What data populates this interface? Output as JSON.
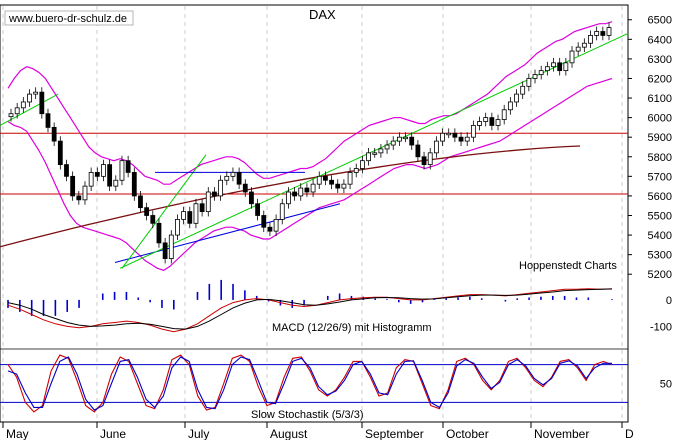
{
  "watermark": "www.buero-dr-schulz.de",
  "chart_data": [
    {
      "type": "candlestick",
      "title": "DAX",
      "source_label": "Hoppenstedt Charts",
      "y_ticks": [
        5200,
        5300,
        5400,
        5500,
        5600,
        5700,
        5800,
        5900,
        6000,
        6100,
        6200,
        6300,
        6400,
        6500
      ],
      "ylim": [
        5150,
        6560
      ],
      "x_labels": [
        "May",
        "June",
        "July",
        "August",
        "September",
        "October",
        "November",
        "D"
      ],
      "horizontal_lines": [
        5920,
        5610
      ],
      "close_series": [
        6020,
        6050,
        6080,
        6120,
        6130,
        6020,
        5950,
        5880,
        5760,
        5700,
        5600,
        5580,
        5650,
        5720,
        5700,
        5760,
        5650,
        5680,
        5780,
        5720,
        5600,
        5540,
        5500,
        5460,
        5360,
        5280,
        5400,
        5480,
        5520,
        5460,
        5560,
        5520,
        5620,
        5600,
        5680,
        5700,
        5720,
        5660,
        5620,
        5560,
        5500,
        5440,
        5420,
        5480,
        5560,
        5620,
        5600,
        5640,
        5620,
        5660,
        5700,
        5680,
        5660,
        5640,
        5660,
        5720,
        5740,
        5780,
        5820,
        5820,
        5840,
        5860,
        5880,
        5900,
        5900,
        5860,
        5800,
        5760,
        5820,
        5880,
        5920,
        5920,
        5900,
        5880,
        5900,
        5960,
        5980,
        6000,
        5960,
        5990,
        6040,
        6080,
        6120,
        6160,
        6200,
        6220,
        6240,
        6260,
        6280,
        6240,
        6280,
        6340,
        6360,
        6380,
        6420,
        6440,
        6420,
        6460
      ],
      "bollinger_upper": [
        6150,
        6200,
        6240,
        6260,
        6250,
        6230,
        6200,
        6150,
        6100,
        6050,
        6000,
        5950,
        5900,
        5850,
        5820,
        5800,
        5790,
        5780,
        5790,
        5780,
        5760,
        5730,
        5700,
        5690,
        5680,
        5660,
        5660,
        5680,
        5700,
        5720,
        5740,
        5760,
        5770,
        5780,
        5790,
        5800,
        5800,
        5790,
        5770,
        5740,
        5710,
        5690,
        5690,
        5700,
        5710,
        5720,
        5730,
        5740,
        5740,
        5750,
        5770,
        5790,
        5820,
        5850,
        5880,
        5900,
        5920,
        5940,
        5960,
        5970,
        5980,
        5990,
        6000,
        6000,
        5990,
        5980,
        5970,
        5970,
        5990,
        6000,
        6010,
        6010,
        6020,
        6040,
        6060,
        6080,
        6100,
        6120,
        6150,
        6180,
        6210,
        6230,
        6250,
        6270,
        6300,
        6330,
        6350,
        6370,
        6390,
        6400,
        6420,
        6440,
        6450,
        6460,
        6470,
        6480,
        6480,
        6490
      ],
      "bollinger_lower": [
        5980,
        5960,
        5950,
        5930,
        5880,
        5830,
        5770,
        5700,
        5630,
        5560,
        5500,
        5460,
        5440,
        5430,
        5420,
        5410,
        5400,
        5390,
        5380,
        5360,
        5330,
        5300,
        5270,
        5250,
        5230,
        5220,
        5240,
        5270,
        5300,
        5330,
        5360,
        5380,
        5400,
        5420,
        5430,
        5440,
        5440,
        5430,
        5420,
        5400,
        5390,
        5380,
        5380,
        5400,
        5420,
        5440,
        5460,
        5480,
        5500,
        5520,
        5540,
        5550,
        5560,
        5570,
        5580,
        5600,
        5620,
        5640,
        5660,
        5680,
        5700,
        5720,
        5740,
        5750,
        5760,
        5760,
        5750,
        5740,
        5750,
        5760,
        5780,
        5800,
        5810,
        5820,
        5830,
        5840,
        5850,
        5860,
        5870,
        5880,
        5900,
        5920,
        5940,
        5960,
        5980,
        6000,
        6020,
        6040,
        6060,
        6080,
        6100,
        6120,
        6140,
        6160,
        6170,
        6180,
        6190,
        6200
      ],
      "ma200_start_end": [
        5340,
        5855
      ],
      "trendlines": [
        {
          "color": "#0000dd",
          "from": [
            "mid-June",
            5260
          ],
          "to": [
            "late August",
            5560
          ]
        },
        {
          "color": "#00cc00",
          "from": [
            "mid-June",
            5230
          ],
          "to": [
            "December",
            6430
          ]
        },
        {
          "color": "#00cc00",
          "from": [
            "May",
            5960
          ],
          "to": [
            "mid-May",
            6120
          ]
        },
        {
          "color": "#00cc00",
          "from": [
            "mid-June",
            5230
          ],
          "to": [
            "July",
            5810
          ]
        },
        {
          "color": "#0000dd",
          "from": [
            "late June",
            5720
          ],
          "to": [
            "late August",
            5720
          ]
        }
      ]
    },
    {
      "type": "line",
      "title": "MACD (12/26/9) mit Histogramm",
      "y_ticks": [
        0,
        -100
      ],
      "ylim": [
        -170,
        60
      ],
      "series": [
        {
          "role": "macd",
          "values": [
            -20,
            -35,
            -55,
            -75,
            -90,
            -100,
            -105,
            -100,
            -90,
            -85,
            -80,
            -85,
            -95,
            -110,
            -120,
            -110,
            -90,
            -60,
            -30,
            -10,
            0,
            5,
            0,
            -10,
            -20,
            -25,
            -20,
            -10,
            0,
            5,
            8,
            10,
            10,
            5,
            0,
            0,
            5,
            10,
            15,
            20,
            20,
            18,
            15,
            20,
            25,
            30,
            35,
            40,
            40,
            42,
            40,
            42
          ]
        },
        {
          "role": "signal",
          "values": [
            -10,
            -20,
            -35,
            -55,
            -70,
            -85,
            -95,
            -100,
            -98,
            -95,
            -90,
            -88,
            -92,
            -100,
            -108,
            -110,
            -100,
            -80,
            -55,
            -30,
            -12,
            0,
            2,
            -3,
            -10,
            -18,
            -20,
            -15,
            -8,
            0,
            4,
            8,
            9,
            8,
            5,
            3,
            4,
            8,
            12,
            16,
            18,
            18,
            17,
            18,
            22,
            26,
            30,
            35,
            37,
            39,
            40,
            41
          ]
        }
      ]
    },
    {
      "type": "line",
      "title": "Slow Stochastik (5/3/3)",
      "y_ticks": [
        50
      ],
      "ylim": [
        0,
        100
      ],
      "horizontal_lines": [
        80,
        20
      ],
      "series": [
        {
          "role": "stoch_k",
          "values": [
            80,
            60,
            20,
            5,
            15,
            70,
            95,
            90,
            55,
            15,
            5,
            20,
            65,
            92,
            85,
            50,
            15,
            10,
            40,
            88,
            95,
            80,
            30,
            8,
            12,
            50,
            90,
            95,
            85,
            45,
            15,
            20,
            60,
            90,
            92,
            70,
            40,
            30,
            40,
            60,
            85,
            85,
            60,
            30,
            35,
            75,
            88,
            85,
            50,
            15,
            10,
            40,
            85,
            90,
            80,
            55,
            40,
            55,
            85,
            90,
            75,
            55,
            45,
            60,
            85,
            88,
            75,
            55,
            80,
            85,
            80
          ]
        },
        {
          "role": "stoch_d",
          "values": [
            70,
            65,
            35,
            12,
            12,
            50,
            85,
            92,
            65,
            25,
            8,
            15,
            50,
            85,
            88,
            60,
            25,
            12,
            30,
            75,
            92,
            85,
            40,
            12,
            10,
            40,
            80,
            92,
            88,
            55,
            20,
            18,
            50,
            85,
            90,
            75,
            45,
            32,
            38,
            55,
            80,
            85,
            65,
            35,
            32,
            65,
            85,
            86,
            55,
            20,
            12,
            35,
            78,
            88,
            82,
            60,
            42,
            52,
            80,
            88,
            78,
            58,
            48,
            58,
            82,
            86,
            78,
            58,
            75,
            82,
            82
          ]
        }
      ]
    }
  ]
}
